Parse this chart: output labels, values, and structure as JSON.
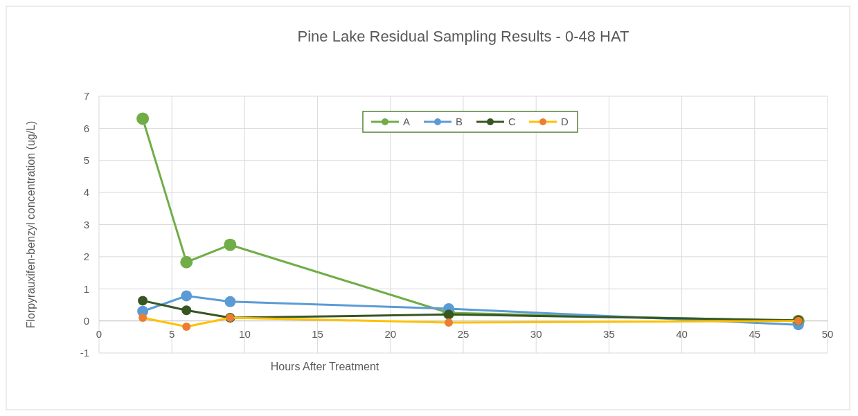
{
  "chart_data": {
    "type": "line",
    "title": "Pine Lake Residual Sampling Results - 0-48 HAT",
    "xlabel": "Hours After Treatment",
    "ylabel": "Florpyrauxifen-benzyl concentration (ug/L)",
    "x": [
      3,
      6,
      9,
      24,
      48
    ],
    "series": [
      {
        "name": "A",
        "color": "#70ad47",
        "values": [
          6.3,
          1.83,
          2.37,
          0.25,
          0.0
        ]
      },
      {
        "name": "B",
        "color": "#5b9bd5",
        "values": [
          0.3,
          0.78,
          0.6,
          0.38,
          -0.12
        ]
      },
      {
        "name": "C",
        "color": "#375623",
        "values": [
          0.63,
          0.33,
          0.1,
          0.2,
          0.02
        ]
      },
      {
        "name": "D",
        "color": "#ffc000",
        "colors": [
          "#ed7d31",
          "#ed7d31",
          "#ed7d31",
          "#ed7d31",
          "#ed7d31"
        ],
        "values": [
          0.1,
          -0.18,
          0.1,
          -0.05,
          0.0
        ]
      }
    ],
    "xlim": [
      0,
      50
    ],
    "xticks": [
      0,
      5,
      10,
      15,
      20,
      25,
      30,
      35,
      40,
      45,
      50
    ],
    "ylim": [
      -1,
      7
    ],
    "yticks": [
      -1,
      0,
      1,
      2,
      3,
      4,
      5,
      6,
      7
    ],
    "grid": true,
    "legend": "top",
    "marker": "circle",
    "line_style": "solid"
  }
}
